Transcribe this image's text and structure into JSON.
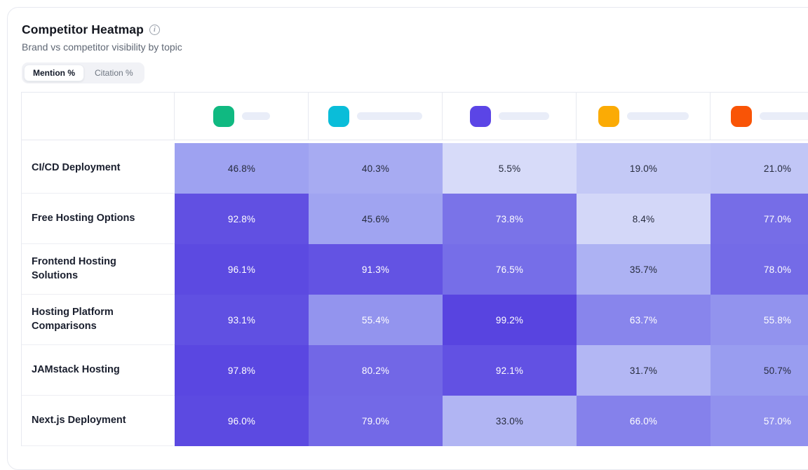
{
  "card": {
    "title": "Competitor Heatmap",
    "subtitle": "Brand vs competitor visibility by topic",
    "toggle": {
      "options": [
        {
          "label": "Mention %",
          "active": true
        },
        {
          "label": "Citation %",
          "active": false
        }
      ]
    }
  },
  "chart_data": {
    "type": "heatmap",
    "title": "Competitor Heatmap",
    "metric": "Mention %",
    "columns": [
      {
        "chip_color": "#10b981",
        "name": "",
        "name_redacted": true,
        "pill_width": 40
      },
      {
        "chip_color": "#0abdd9",
        "name": "",
        "name_redacted": true,
        "pill_width": 93
      },
      {
        "chip_color": "#5b45e6",
        "name": "",
        "name_redacted": true,
        "pill_width": 72
      },
      {
        "chip_color": "#fbab05",
        "name": "",
        "name_redacted": true,
        "pill_width": 88
      },
      {
        "chip_color": "#f95406",
        "name": "",
        "name_redacted": true,
        "pill_width": 92
      }
    ],
    "rows": [
      {
        "topic": "CI/CD Deployment",
        "values": [
          46.8,
          40.3,
          5.5,
          19.0,
          21.0
        ],
        "clipped": false
      },
      {
        "topic": "Free Hosting Options",
        "values": [
          92.8,
          45.6,
          73.8,
          8.4,
          77.0
        ],
        "clipped": false
      },
      {
        "topic": "Frontend Hosting Solutions",
        "values": [
          96.1,
          91.3,
          76.5,
          35.7,
          78.0
        ],
        "clipped": false
      },
      {
        "topic": "Hosting Platform Comparisons",
        "values": [
          93.1,
          55.4,
          99.2,
          63.7,
          55.8
        ],
        "clipped": false
      },
      {
        "topic": "JAMstack Hosting",
        "values": [
          97.8,
          80.2,
          92.1,
          31.7,
          50.7
        ],
        "clipped": false
      },
      {
        "topic": "Next.js Deployment",
        "values": [
          96.0,
          79.0,
          33.0,
          66.0,
          57.0
        ],
        "clipped": true
      }
    ],
    "value_format": "percent_1dp",
    "color_scale": {
      "low": "#dee3fa",
      "mid": "#9a9ef0",
      "high": "#5743e0",
      "light_text_threshold": 52,
      "dark_text_color": "#262b3d",
      "light_text_color": "#ffffff"
    }
  }
}
